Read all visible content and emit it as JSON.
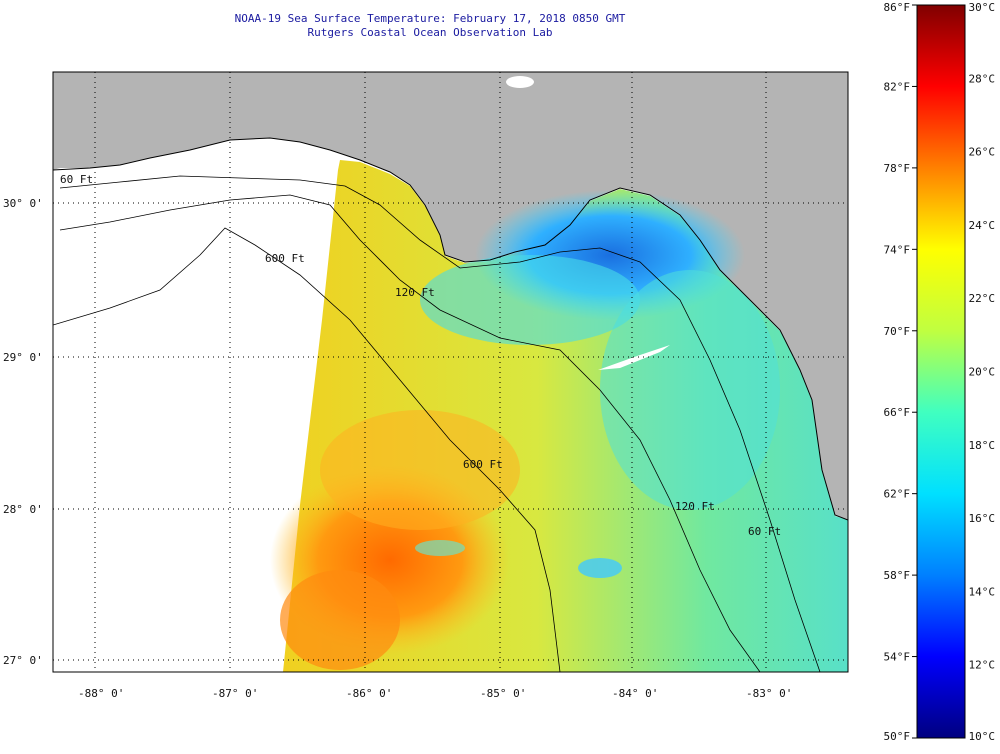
{
  "title_line1": "NOAA-19 Sea Surface Temperature:  February 17, 2018 0850 GMT",
  "title_line2": "Rutgers Coastal Ocean Observation Lab",
  "latitude_labels": [
    "30° 0'",
    "29° 0'",
    "28° 0'",
    "27° 0'"
  ],
  "longitude_labels": [
    "-88° 0'",
    "-87° 0'",
    "-86° 0'",
    "-85° 0'",
    "-84° 0'",
    "-83° 0'"
  ],
  "isobath_labels": [
    "60 Ft",
    "120 Ft",
    "600 Ft",
    "600 Ft",
    "120 Ft",
    "60 Ft"
  ],
  "colorbar": {
    "fahrenheit_labels": [
      "86°F",
      "82°F",
      "78°F",
      "74°F",
      "70°F",
      "66°F",
      "62°F",
      "58°F",
      "54°F",
      "50°F"
    ],
    "celsius_labels": [
      "30°C",
      "28°C",
      "26°C",
      "24°C",
      "22°C",
      "20°C",
      "18°C",
      "16°C",
      "14°C",
      "12°C",
      "10°C"
    ],
    "colors": [
      "#000080",
      "#0000ff",
      "#0080ff",
      "#00e0ff",
      "#40ffc0",
      "#c0ff40",
      "#ffff00",
      "#ff8000",
      "#ff0000",
      "#800000"
    ]
  },
  "colors": {
    "land": "#b4b4b4",
    "no_data": "#ffffff",
    "title_text": "#1a1aa0"
  }
}
